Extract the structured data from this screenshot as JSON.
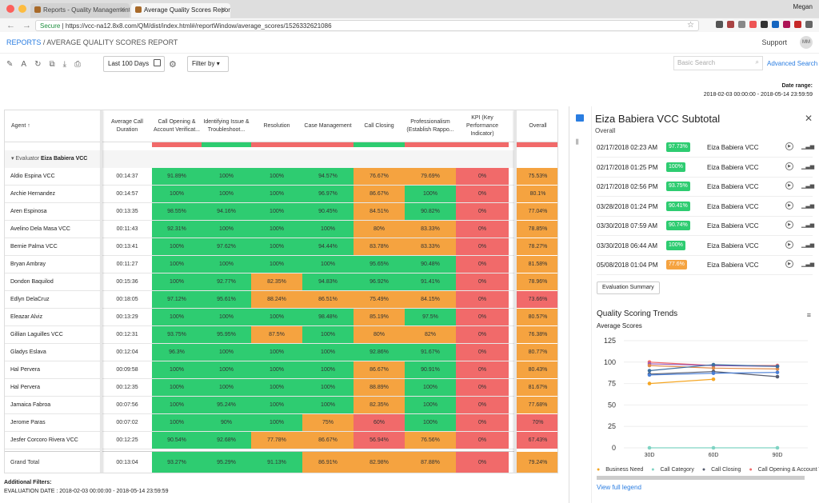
{
  "browser": {
    "tab1": "Reports - Quality Management",
    "tab2": "Average Quality Scores Report",
    "user": "Megan",
    "secure": "Secure",
    "url": "https://vcc-na12.8x8.com/QM/dist/index.html#/reportWindow/average_scores/1526332621086"
  },
  "app": {
    "breadcrumb_root": "REPORTS",
    "breadcrumb_sep": " / ",
    "breadcrumb_page": "AVERAGE QUALITY SCORES REPORT",
    "support": "Support",
    "avatar": "MM"
  },
  "toolbar": {
    "range": "Last 100 Days",
    "filter": "Filter by",
    "search_placeholder": "Basic Search",
    "advanced": "Advanced Search"
  },
  "date_range": {
    "label": "Date range:",
    "value": "2018-02-03 00:00:00 - 2018-05-14 23:59:59"
  },
  "table": {
    "headers": [
      "Agent ↑",
      "Average Call Duration",
      "Call Opening & Account Verificat...",
      "Identifying Issue & Troubleshoot...",
      "Resolution",
      "Case Management",
      "Call Closing",
      "Professionalism (Establish Rappo...",
      "KPI (Key Performance Indicator)",
      "Overall"
    ],
    "evaluator_label": "Evaluator",
    "evaluator": "Eiza Babiera VCC",
    "rows": [
      [
        "Aldio Espina VCC",
        "00:14:37",
        "91.89%",
        "100%",
        "100%",
        "94.57%",
        "76.67%",
        "79.69%",
        "0%",
        "75.53%"
      ],
      [
        "Archie Hernandez",
        "00:14:57",
        "100%",
        "100%",
        "100%",
        "96.97%",
        "86.67%",
        "100%",
        "0%",
        "80.1%"
      ],
      [
        "Aren Espinosa",
        "00:13:35",
        "98.55%",
        "94.16%",
        "100%",
        "90.45%",
        "84.51%",
        "90.82%",
        "0%",
        "77.04%"
      ],
      [
        "Avelino Dela Masa VCC",
        "00:11:43",
        "92.31%",
        "100%",
        "100%",
        "100%",
        "80%",
        "83.33%",
        "0%",
        "78.85%"
      ],
      [
        "Bernie Palma VCC",
        "00:13:41",
        "100%",
        "97.62%",
        "100%",
        "94.44%",
        "83.78%",
        "83.33%",
        "0%",
        "78.27%"
      ],
      [
        "Bryan Ambray",
        "00:11:27",
        "100%",
        "100%",
        "100%",
        "100%",
        "95.65%",
        "90.48%",
        "0%",
        "81.58%"
      ],
      [
        "Dondon Baquilod",
        "00:15:36",
        "100%",
        "92.77%",
        "82.35%",
        "94.83%",
        "96.92%",
        "91.41%",
        "0%",
        "78.96%"
      ],
      [
        "Edlyn DelaCruz",
        "00:18:05",
        "97.12%",
        "95.61%",
        "88.24%",
        "86.51%",
        "75.49%",
        "84.15%",
        "0%",
        "73.66%"
      ],
      [
        "Eleazar Alviz",
        "00:13:29",
        "100%",
        "100%",
        "100%",
        "98.48%",
        "85.19%",
        "97.5%",
        "0%",
        "80.57%"
      ],
      [
        "Gillian Laguilles VCC",
        "00:12:31",
        "93.75%",
        "95.95%",
        "87.5%",
        "100%",
        "80%",
        "82%",
        "0%",
        "76.38%"
      ],
      [
        "Gladys Eslava",
        "00:12:04",
        "96.3%",
        "100%",
        "100%",
        "100%",
        "92.86%",
        "91.67%",
        "0%",
        "80.77%"
      ],
      [
        "Hal Pervera",
        "00:09:58",
        "100%",
        "100%",
        "100%",
        "100%",
        "86.67%",
        "90.91%",
        "0%",
        "80.43%"
      ],
      [
        "Hal Pervera",
        "00:12:35",
        "100%",
        "100%",
        "100%",
        "100%",
        "88.89%",
        "100%",
        "0%",
        "81.67%"
      ],
      [
        "Jamaica Fabroa",
        "00:07:56",
        "100%",
        "95.24%",
        "100%",
        "100%",
        "82.35%",
        "100%",
        "0%",
        "77.68%"
      ],
      [
        "Jerome Paras",
        "00:07:02",
        "100%",
        "90%",
        "100%",
        "75%",
        "60%",
        "100%",
        "0%",
        "70%"
      ],
      [
        "Jesfer Corcoro Rivera VCC",
        "00:12:25",
        "90.54%",
        "92.68%",
        "77.78%",
        "86.67%",
        "56.94%",
        "76.56%",
        "0%",
        "67.43%"
      ]
    ],
    "grand": [
      "Grand Total",
      "00:13:04",
      "93.27%",
      "95.29%",
      "91.13%",
      "86.91%",
      "82.98%",
      "87.88%",
      "0%",
      "79.24%"
    ]
  },
  "additional": {
    "label": "Additional Filters:",
    "eval_label": "EVALUATION DATE :",
    "eval_value": "2018-02-03 00:00:00 - 2018-05-14 23:59:59"
  },
  "panel": {
    "title": "Eiza Babiera VCC Subtotal",
    "subtitle": "Overall",
    "evals": [
      {
        "date": "02/17/2018 02:23 AM",
        "score": "97.73%",
        "evaluator": "Eiza Babiera VCC",
        "status": "green"
      },
      {
        "date": "02/17/2018 01:25 PM",
        "score": "100%",
        "evaluator": "Eiza Babiera VCC",
        "status": "green"
      },
      {
        "date": "02/17/2018 02:56 PM",
        "score": "93.75%",
        "evaluator": "Eiza Babiera VCC",
        "status": "green"
      },
      {
        "date": "03/28/2018 01:24 PM",
        "score": "90.41%",
        "evaluator": "Eiza Babiera VCC",
        "status": "green"
      },
      {
        "date": "03/30/2018 07:59 AM",
        "score": "90.74%",
        "evaluator": "Eiza Babiera VCC",
        "status": "green"
      },
      {
        "date": "03/30/2018 06:44 AM",
        "score": "100%",
        "evaluator": "Eiza Babiera VCC",
        "status": "green"
      },
      {
        "date": "05/08/2018 01:04 PM",
        "score": "77.6%",
        "evaluator": "Eiza Babiera VCC",
        "status": "orange"
      }
    ],
    "eval_summary": "Evaluation Summary",
    "trend_title": "Quality Scoring Trends",
    "legend": [
      "Business Need",
      "Call Category",
      "Call Closing",
      "Call Opening & Account Verific..."
    ],
    "legend_colors": [
      "#f5a623",
      "#7fd3c3",
      "#555b6e",
      "#f16a6a"
    ],
    "view_legend": "View full legend"
  },
  "colors": {
    "green": "#2ecc71",
    "orange": "#f5a340",
    "red": "#f16a6a",
    "link": "#2a7de1"
  },
  "chart_data": {
    "type": "line",
    "ylabel": "Average Scores",
    "x": [
      "30D",
      "60D",
      "90D"
    ],
    "ylim": [
      0,
      125
    ],
    "yticks": [
      0,
      25,
      50,
      75,
      100,
      125
    ],
    "series": [
      {
        "name": "Business Need",
        "color": "#f5a623",
        "values": [
          75,
          80,
          null
        ]
      },
      {
        "name": "Call Category",
        "color": "#7fd3c3",
        "values": [
          0,
          0,
          0
        ]
      },
      {
        "name": "Call Closing",
        "color": "#555b6e",
        "values": [
          86,
          89,
          83
        ]
      },
      {
        "name": "Call Opening & Account Verific...",
        "color": "#f16a6a",
        "values": [
          100,
          96,
          96
        ]
      },
      {
        "color": "#4a7fd6",
        "values": [
          85,
          87,
          88
        ]
      },
      {
        "color": "#9b59b6",
        "values": [
          98,
          96,
          95
        ]
      },
      {
        "color": "#e08a4a",
        "values": [
          96,
          93,
          92
        ]
      },
      {
        "color": "#3c6e9f",
        "values": [
          90,
          97,
          95
        ]
      }
    ]
  }
}
